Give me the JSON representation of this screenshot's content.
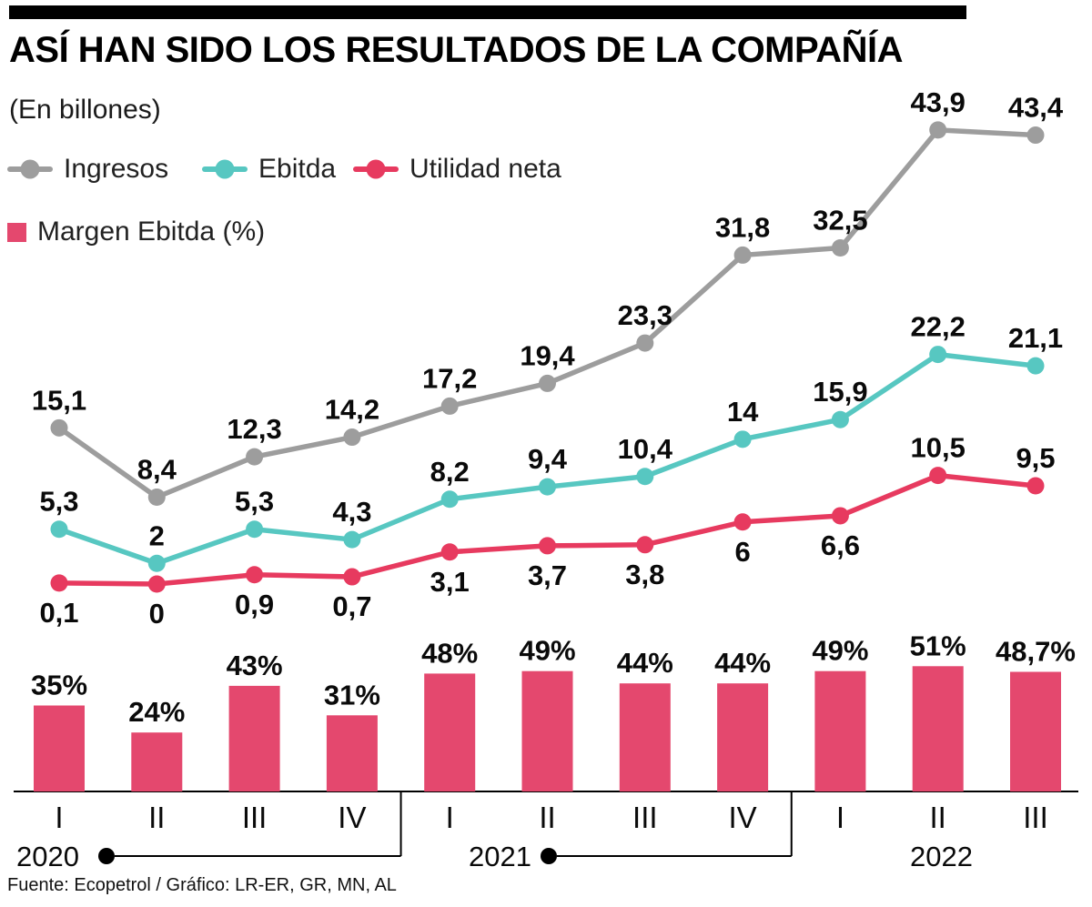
{
  "header": {
    "title": "ASÍ HAN SIDO LOS RESULTADOS DE LA COMPAÑÍA",
    "subtitle": "(En billones)"
  },
  "legend": {
    "lines": [
      {
        "label": "Ingresos",
        "color": "#9d9d9d"
      },
      {
        "label": "Ebitda",
        "color": "#57c7c1"
      },
      {
        "label": "Utilidad neta",
        "color": "#e73a5f"
      }
    ],
    "bar": {
      "label": "Margen Ebitda (%)",
      "color": "#e4486e"
    }
  },
  "chart_data": {
    "type": "line+bar",
    "unit": "(En billones)",
    "title": "ASÍ HAN SIDO LOS RESULTADOS DE LA COMPAÑÍA",
    "categories": [
      "I",
      "II",
      "III",
      "IV",
      "I",
      "II",
      "III",
      "IV",
      "I",
      "II",
      "III"
    ],
    "years": [
      {
        "label": "2020",
        "quarters": [
          0,
          3
        ]
      },
      {
        "label": "2021",
        "quarters": [
          4,
          7
        ]
      },
      {
        "label": "2022",
        "quarters": [
          8,
          10
        ]
      }
    ],
    "series": [
      {
        "id": "ingresos",
        "name": "Ingresos",
        "type": "line",
        "color": "#9d9d9d",
        "values": [
          15.1,
          8.4,
          12.3,
          14.2,
          17.2,
          19.4,
          23.3,
          31.8,
          32.5,
          43.9,
          43.4
        ],
        "labels": [
          "15,1",
          "8,4",
          "12,3",
          "14,2",
          "17,2",
          "19,4",
          "23,3",
          "31,8",
          "32,5",
          "43,9",
          "43,4"
        ],
        "label_side": [
          "above",
          "above",
          "above",
          "above",
          "above",
          "above",
          "above",
          "above",
          "above",
          "above",
          "above"
        ]
      },
      {
        "id": "ebitda",
        "name": "Ebitda",
        "type": "line",
        "color": "#57c7c1",
        "values": [
          5.3,
          2,
          5.3,
          4.3,
          8.2,
          9.4,
          10.4,
          14,
          15.9,
          22.2,
          21.1
        ],
        "labels": [
          "5,3",
          "2",
          "5,3",
          "4,3",
          "8,2",
          "9,4",
          "10,4",
          "14",
          "15,9",
          "22,2",
          "21,1"
        ],
        "label_side": [
          "above",
          "above",
          "above",
          "above",
          "above",
          "above",
          "above",
          "above",
          "above",
          "above",
          "above"
        ]
      },
      {
        "id": "utilidad-neta",
        "name": "Utilidad neta",
        "type": "line",
        "color": "#e73a5f",
        "values": [
          0.1,
          0,
          0.9,
          0.7,
          3.1,
          3.7,
          3.8,
          6,
          6.6,
          10.5,
          9.5
        ],
        "labels": [
          "0,1",
          "0",
          "0,9",
          "0,7",
          "3,1",
          "3,7",
          "3,8",
          "6",
          "6,6",
          "10,5",
          "9,5"
        ],
        "label_side": [
          "below",
          "below",
          "below",
          "below",
          "below",
          "below",
          "below",
          "below",
          "below",
          "above",
          "above"
        ]
      }
    ],
    "bars": {
      "id": "margen-ebitda",
      "name": "Margen Ebitda (%)",
      "color": "#e4486e",
      "values": [
        35,
        24,
        43,
        31,
        48,
        49,
        44,
        44,
        49,
        51,
        48.7
      ],
      "labels": [
        "35%",
        "24%",
        "43%",
        "31%",
        "48%",
        "49%",
        "44%",
        "44%",
        "49%",
        "51%",
        "48,7%"
      ]
    },
    "line_ylim": [
      0,
      45
    ],
    "bar_ylim": [
      0,
      55
    ],
    "grid": false,
    "legend_position": "top-left"
  },
  "footer": {
    "source": "Fuente: Ecopetrol / Gráfico: LR-ER, GR, MN, AL"
  }
}
